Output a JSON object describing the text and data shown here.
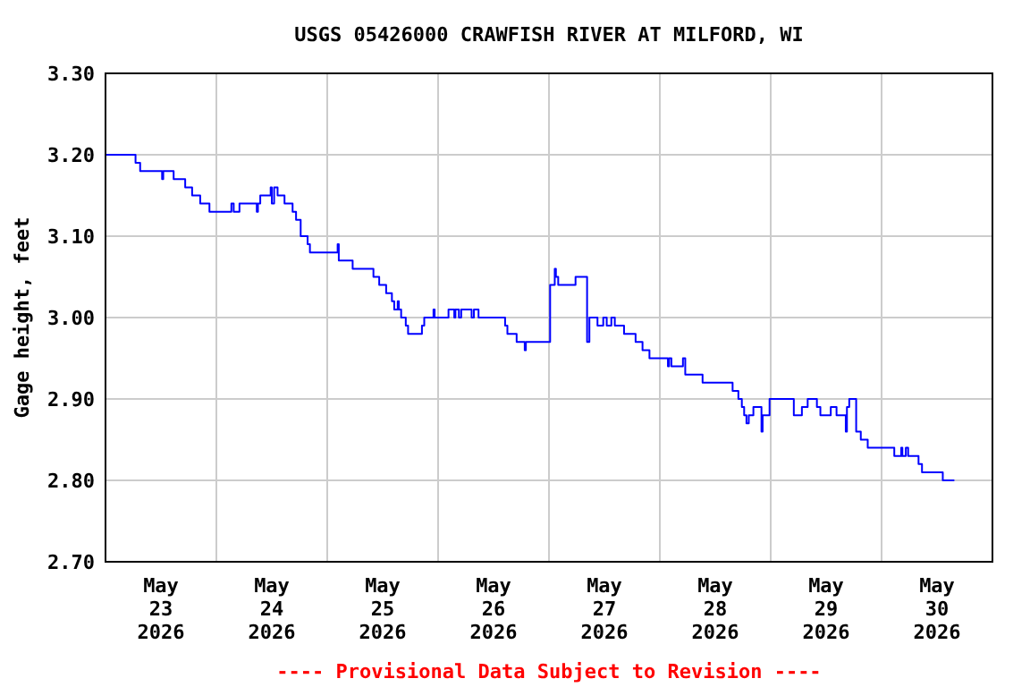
{
  "chart_data": {
    "type": "step",
    "title": "USGS 05426000 CRAWFISH RIVER AT MILFORD, WI",
    "ylabel": "Gage height, feet",
    "annotations": [
      "---- Provisional Data Subject to Revision ----"
    ],
    "grid": true,
    "xlim": [
      "2026-05-23T00:00",
      "2026-05-31T00:00"
    ],
    "xticks": [
      {
        "value": "2026-05-23T00:00",
        "label": null
      },
      {
        "value": "2026-05-23T12:00",
        "label": "May\n23\n2026"
      },
      {
        "value": "2026-05-24T00:00",
        "label": null
      },
      {
        "value": "2026-05-24T12:00",
        "label": "May\n24\n2026"
      },
      {
        "value": "2026-05-25T00:00",
        "label": null
      },
      {
        "value": "2026-05-25T12:00",
        "label": "May\n25\n2026"
      },
      {
        "value": "2026-05-26T00:00",
        "label": null
      },
      {
        "value": "2026-05-26T12:00",
        "label": "May\n26\n2026"
      },
      {
        "value": "2026-05-27T00:00",
        "label": null
      },
      {
        "value": "2026-05-27T12:00",
        "label": "May\n27\n2026"
      },
      {
        "value": "2026-05-28T00:00",
        "label": null
      },
      {
        "value": "2026-05-28T12:00",
        "label": "May\n28\n2026"
      },
      {
        "value": "2026-05-29T00:00",
        "label": null
      },
      {
        "value": "2026-05-29T12:00",
        "label": "May\n29\n2026"
      },
      {
        "value": "2026-05-30T00:00",
        "label": null
      },
      {
        "value": "2026-05-30T12:00",
        "label": "May\n30\n2026"
      },
      {
        "value": "2026-05-31T00:00",
        "label": null
      }
    ],
    "ylim": [
      2.7,
      3.3
    ],
    "yticks": [
      {
        "value": 2.7,
        "label": "2.70"
      },
      {
        "value": 2.8,
        "label": "2.80"
      },
      {
        "value": 2.9,
        "label": "2.90"
      },
      {
        "value": 3.0,
        "label": "3.00"
      },
      {
        "value": 3.1,
        "label": "3.10"
      },
      {
        "value": 3.2,
        "label": "3.20"
      },
      {
        "value": 3.3,
        "label": "3.30"
      }
    ],
    "x": [
      "2026-05-23T00:00",
      "2026-05-23T06:30",
      "2026-05-23T07:30",
      "2026-05-23T12:15",
      "2026-05-23T12:30",
      "2026-05-23T14:45",
      "2026-05-23T17:15",
      "2026-05-23T18:45",
      "2026-05-23T20:30",
      "2026-05-23T22:30",
      "2026-05-24T03:15",
      "2026-05-24T03:45",
      "2026-05-24T05:00",
      "2026-05-24T08:45",
      "2026-05-24T09:00",
      "2026-05-24T09:30",
      "2026-05-24T11:45",
      "2026-05-24T12:00",
      "2026-05-24T12:30",
      "2026-05-24T13:15",
      "2026-05-24T14:45",
      "2026-05-24T16:30",
      "2026-05-24T17:15",
      "2026-05-24T18:15",
      "2026-05-24T19:45",
      "2026-05-24T20:15",
      "2026-05-25T02:15",
      "2026-05-25T02:30",
      "2026-05-25T05:30",
      "2026-05-25T10:00",
      "2026-05-25T11:15",
      "2026-05-25T12:45",
      "2026-05-25T14:00",
      "2026-05-25T14:30",
      "2026-05-25T15:15",
      "2026-05-25T15:30",
      "2026-05-25T16:00",
      "2026-05-25T17:00",
      "2026-05-25T17:30",
      "2026-05-25T20:30",
      "2026-05-25T21:00",
      "2026-05-25T23:00",
      "2026-05-25T23:15",
      "2026-05-26T02:15",
      "2026-05-26T03:30",
      "2026-05-26T03:45",
      "2026-05-26T04:30",
      "2026-05-26T05:00",
      "2026-05-26T07:15",
      "2026-05-26T07:45",
      "2026-05-26T08:45",
      "2026-05-26T14:30",
      "2026-05-26T15:00",
      "2026-05-26T17:00",
      "2026-05-26T18:45",
      "2026-05-26T19:00",
      "2026-05-27T00:15",
      "2026-05-27T01:15",
      "2026-05-27T01:30",
      "2026-05-27T02:00",
      "2026-05-27T05:45",
      "2026-05-27T08:15",
      "2026-05-27T08:45",
      "2026-05-27T10:30",
      "2026-05-27T11:45",
      "2026-05-27T12:30",
      "2026-05-27T13:30",
      "2026-05-27T14:15",
      "2026-05-27T16:15",
      "2026-05-27T18:45",
      "2026-05-27T20:15",
      "2026-05-27T21:45",
      "2026-05-28T01:45",
      "2026-05-28T02:00",
      "2026-05-28T02:30",
      "2026-05-28T05:00",
      "2026-05-28T05:30",
      "2026-05-28T09:15",
      "2026-05-28T15:45",
      "2026-05-28T17:00",
      "2026-05-28T17:45",
      "2026-05-28T18:15",
      "2026-05-28T18:45",
      "2026-05-28T19:15",
      "2026-05-28T20:15",
      "2026-05-28T22:00",
      "2026-05-28T22:15",
      "2026-05-28T23:45",
      "2026-05-29T05:00",
      "2026-05-29T06:45",
      "2026-05-29T08:00",
      "2026-05-29T10:00",
      "2026-05-29T10:45",
      "2026-05-29T13:00",
      "2026-05-29T14:15",
      "2026-05-29T16:15",
      "2026-05-29T16:30",
      "2026-05-29T17:00",
      "2026-05-29T18:30",
      "2026-05-29T19:30",
      "2026-05-29T21:00",
      "2026-05-30T02:45",
      "2026-05-30T04:15",
      "2026-05-30T04:30",
      "2026-05-30T05:15",
      "2026-05-30T05:45",
      "2026-05-30T08:00",
      "2026-05-30T08:45",
      "2026-05-30T13:15",
      "2026-05-30T15:45"
    ],
    "series": [
      {
        "color": "#0000ff",
        "values": [
          3.2,
          3.19,
          3.18,
          3.17,
          3.18,
          3.17,
          3.16,
          3.15,
          3.14,
          3.13,
          3.14,
          3.13,
          3.14,
          3.13,
          3.14,
          3.15,
          3.16,
          3.14,
          3.16,
          3.15,
          3.14,
          3.13,
          3.12,
          3.1,
          3.09,
          3.08,
          3.09,
          3.07,
          3.06,
          3.05,
          3.04,
          3.03,
          3.02,
          3.01,
          3.02,
          3.01,
          3.0,
          2.99,
          2.98,
          2.99,
          3.0,
          3.01,
          3.0,
          3.01,
          3.0,
          3.01,
          3.0,
          3.01,
          3.0,
          3.01,
          3.0,
          2.99,
          2.98,
          2.97,
          2.96,
          2.97,
          3.04,
          3.06,
          3.05,
          3.04,
          3.05,
          2.97,
          3.0,
          2.99,
          3.0,
          2.99,
          3.0,
          2.99,
          2.98,
          2.97,
          2.96,
          2.95,
          2.94,
          2.95,
          2.94,
          2.95,
          2.93,
          2.92,
          2.91,
          2.9,
          2.89,
          2.88,
          2.87,
          2.88,
          2.89,
          2.86,
          2.88,
          2.9,
          2.88,
          2.89,
          2.9,
          2.89,
          2.88,
          2.89,
          2.88,
          2.86,
          2.89,
          2.9,
          2.86,
          2.85,
          2.84,
          2.83,
          2.84,
          2.83,
          2.84,
          2.83,
          2.82,
          2.81,
          2.8,
          2.8
        ]
      }
    ]
  }
}
